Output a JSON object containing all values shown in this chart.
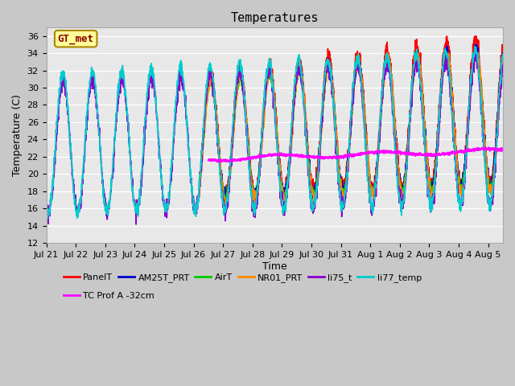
{
  "title": "Temperatures",
  "xlabel": "Time",
  "ylabel": "Temperature (C)",
  "ylim": [
    12,
    37
  ],
  "yticks": [
    12,
    14,
    16,
    18,
    20,
    22,
    24,
    26,
    28,
    30,
    32,
    34,
    36
  ],
  "plot_bg_color": "#e8e8e8",
  "fig_bg_color": "#c8c8c8",
  "annotation_text": "GT_met",
  "annotation_box_color": "#ffff99",
  "annotation_text_color": "#8b0000",
  "annotation_border_color": "#aa8800",
  "series": [
    {
      "name": "PanelT",
      "color": "#ff0000",
      "lw": 1.2
    },
    {
      "name": "AM25T_PRT",
      "color": "#0000cc",
      "lw": 1.2
    },
    {
      "name": "AirT",
      "color": "#00cc00",
      "lw": 1.2
    },
    {
      "name": "NR01_PRT",
      "color": "#ff8800",
      "lw": 1.2
    },
    {
      "name": "li75_t",
      "color": "#8800cc",
      "lw": 1.2
    },
    {
      "name": "li77_temp",
      "color": "#00cccc",
      "lw": 1.2
    },
    {
      "name": "TC Prof A -32cm",
      "color": "#ff00ff",
      "lw": 1.5
    }
  ],
  "tick_labels": [
    "Jul 21",
    "Jul 22",
    "Jul 23",
    "Jul 24",
    "Jul 25",
    "Jul 26",
    "Jul 27",
    "Jul 28",
    "Jul 29",
    "Jul 30",
    "Jul 31",
    "Aug 1",
    "Aug 2",
    "Aug 3",
    "Aug 4",
    "Aug 5"
  ],
  "n_days": 15.5,
  "ppd": 144
}
